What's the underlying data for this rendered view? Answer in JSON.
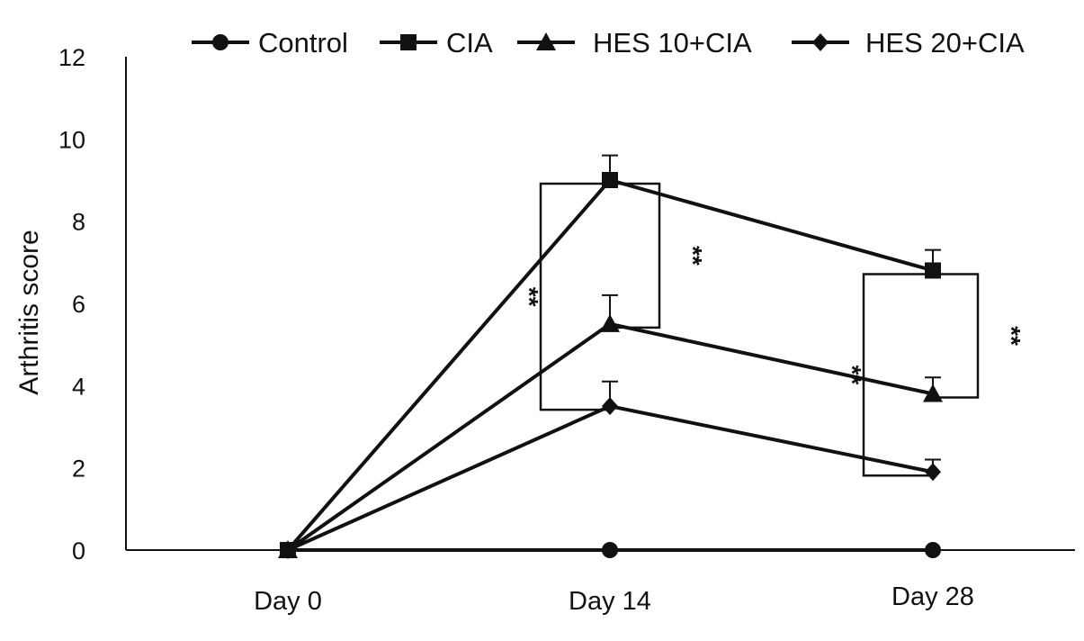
{
  "chart_data": {
    "type": "line",
    "title": "",
    "xlabel": "",
    "ylabel": "Arthritis score",
    "categories": [
      "Day 0",
      "Day 14",
      "Day 28"
    ],
    "ylim": [
      0,
      12
    ],
    "yticks": [
      0,
      2,
      4,
      6,
      8,
      10,
      12
    ],
    "grid": false,
    "legend_position": "top",
    "series": [
      {
        "name": "Control",
        "marker": "circle",
        "values": [
          0,
          0,
          0
        ],
        "errors": [
          0,
          0,
          0
        ]
      },
      {
        "name": "CIA",
        "marker": "square",
        "values": [
          0,
          9.0,
          6.8
        ],
        "errors": [
          0,
          0.6,
          0.5
        ]
      },
      {
        "name": "HES 10+CIA",
        "marker": "triangle",
        "values": [
          0,
          5.5,
          3.8
        ],
        "errors": [
          0,
          0.7,
          0.4
        ]
      },
      {
        "name": "HES 20+CIA",
        "marker": "diamond",
        "values": [
          0,
          3.5,
          1.9
        ],
        "errors": [
          0,
          0.6,
          0.3
        ]
      }
    ],
    "significance": [
      {
        "category": "Day 14",
        "between": [
          "CIA",
          "HES 20+CIA"
        ],
        "label": "**",
        "side": "left"
      },
      {
        "category": "Day 14",
        "between": [
          "CIA",
          "HES 10+CIA"
        ],
        "label": "**",
        "side": "right"
      },
      {
        "category": "Day 28",
        "between": [
          "CIA",
          "HES 20+CIA"
        ],
        "label": "**",
        "side": "left"
      },
      {
        "category": "Day 28",
        "between": [
          "CIA",
          "HES 10+CIA"
        ],
        "label": "**",
        "side": "right"
      }
    ],
    "colors": {
      "line": "#111111",
      "axis": "#111111"
    }
  }
}
